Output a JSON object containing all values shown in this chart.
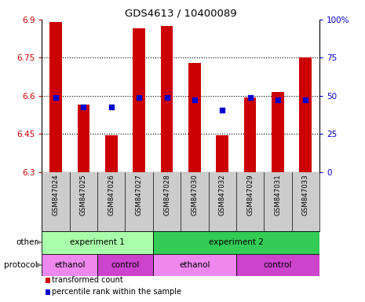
{
  "title": "GDS4613 / 10400089",
  "samples": [
    "GSM847024",
    "GSM847025",
    "GSM847026",
    "GSM847027",
    "GSM847028",
    "GSM847030",
    "GSM847032",
    "GSM847029",
    "GSM847031",
    "GSM847033"
  ],
  "bar_tops": [
    6.89,
    6.565,
    6.445,
    6.865,
    6.875,
    6.73,
    6.445,
    6.595,
    6.615,
    6.75
  ],
  "bar_bottoms": [
    6.3,
    6.3,
    6.3,
    6.3,
    6.3,
    6.3,
    6.3,
    6.3,
    6.3,
    6.3
  ],
  "blue_dots": [
    6.595,
    6.555,
    6.555,
    6.595,
    6.595,
    6.585,
    6.545,
    6.595,
    6.585,
    6.585
  ],
  "ylim_left": [
    6.3,
    6.9
  ],
  "ylim_right": [
    0,
    100
  ],
  "yticks_left": [
    6.3,
    6.45,
    6.6,
    6.75,
    6.9
  ],
  "yticks_right": [
    0,
    25,
    50,
    75,
    100
  ],
  "ytick_labels_left": [
    "6.3",
    "6.45",
    "6.6",
    "6.75",
    "6.9"
  ],
  "ytick_labels_right": [
    "0",
    "25",
    "50",
    "75",
    "100%"
  ],
  "bar_color": "#cc0000",
  "dot_color": "#0000cc",
  "other_row": [
    {
      "label": "experiment 1",
      "start": 0,
      "end": 4,
      "color": "#aaffaa"
    },
    {
      "label": "experiment 2",
      "start": 4,
      "end": 10,
      "color": "#33cc55"
    }
  ],
  "protocol_row": [
    {
      "label": "ethanol",
      "start": 0,
      "end": 2,
      "color": "#ee88ee"
    },
    {
      "label": "control",
      "start": 2,
      "end": 4,
      "color": "#cc44cc"
    },
    {
      "label": "ethanol",
      "start": 4,
      "end": 7,
      "color": "#ee88ee"
    },
    {
      "label": "control",
      "start": 7,
      "end": 10,
      "color": "#cc44cc"
    }
  ],
  "other_label": "other",
  "protocol_label": "protocol",
  "legend1": "transformed count",
  "legend2": "percentile rank within the sample",
  "left_tick_color": "#cc0000",
  "right_tick_color": "#0000cc",
  "bar_width": 0.45
}
